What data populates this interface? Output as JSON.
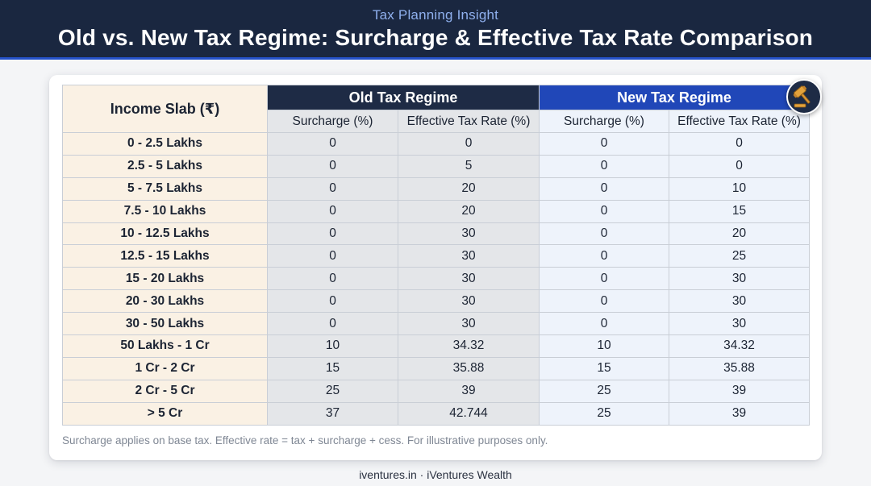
{
  "header": {
    "kicker": "Tax Planning Insight",
    "title": "Old vs. New Tax Regime: Surcharge & Effective Tax Rate Comparison"
  },
  "table": {
    "slab_header": "Income Slab (₹)",
    "old_regime": "Old Tax Regime",
    "new_regime": "New Tax Regime",
    "sub_surcharge": "Surcharge (%)",
    "sub_effective": "Effective Tax Rate (%)",
    "icon": "gavel-icon",
    "rows": [
      {
        "slab": "0 - 2.5 Lakhs",
        "old_surcharge": "0",
        "old_effective": "0",
        "new_surcharge": "0",
        "new_effective": "0"
      },
      {
        "slab": "2.5 - 5 Lakhs",
        "old_surcharge": "0",
        "old_effective": "5",
        "new_surcharge": "0",
        "new_effective": "0"
      },
      {
        "slab": "5 - 7.5 Lakhs",
        "old_surcharge": "0",
        "old_effective": "20",
        "new_surcharge": "0",
        "new_effective": "10"
      },
      {
        "slab": "7.5 - 10 Lakhs",
        "old_surcharge": "0",
        "old_effective": "20",
        "new_surcharge": "0",
        "new_effective": "15"
      },
      {
        "slab": "10 - 12.5 Lakhs",
        "old_surcharge": "0",
        "old_effective": "30",
        "new_surcharge": "0",
        "new_effective": "20"
      },
      {
        "slab": "12.5 - 15 Lakhs",
        "old_surcharge": "0",
        "old_effective": "30",
        "new_surcharge": "0",
        "new_effective": "25"
      },
      {
        "slab": "15 - 20 Lakhs",
        "old_surcharge": "0",
        "old_effective": "30",
        "new_surcharge": "0",
        "new_effective": "30"
      },
      {
        "slab": "20 - 30 Lakhs",
        "old_surcharge": "0",
        "old_effective": "30",
        "new_surcharge": "0",
        "new_effective": "30"
      },
      {
        "slab": "30 - 50 Lakhs",
        "old_surcharge": "0",
        "old_effective": "30",
        "new_surcharge": "0",
        "new_effective": "30"
      },
      {
        "slab": "50 Lakhs - 1 Cr",
        "old_surcharge": "10",
        "old_effective": "34.32",
        "new_surcharge": "10",
        "new_effective": "34.32"
      },
      {
        "slab": "1 Cr - 2 Cr",
        "old_surcharge": "15",
        "old_effective": "35.88",
        "new_surcharge": "15",
        "new_effective": "35.88"
      },
      {
        "slab": "2 Cr - 5 Cr",
        "old_surcharge": "25",
        "old_effective": "39",
        "new_surcharge": "25",
        "new_effective": "39"
      },
      {
        "slab": "> 5 Cr",
        "old_surcharge": "37",
        "old_effective": "42.744",
        "new_surcharge": "25",
        "new_effective": "39"
      }
    ]
  },
  "footnote": "Surcharge applies on base tax. Effective rate = tax + surcharge + cess. For illustrative purposes only.",
  "footer": "iventures.in · iVentures Wealth",
  "colors": {
    "banner": "#1a2740",
    "old_header": "#1e2b45",
    "new_header": "#2047b8",
    "slab_fill": "#faf1e4",
    "old_fill": "#e4e6e9",
    "new_fill": "#eef3fb"
  }
}
